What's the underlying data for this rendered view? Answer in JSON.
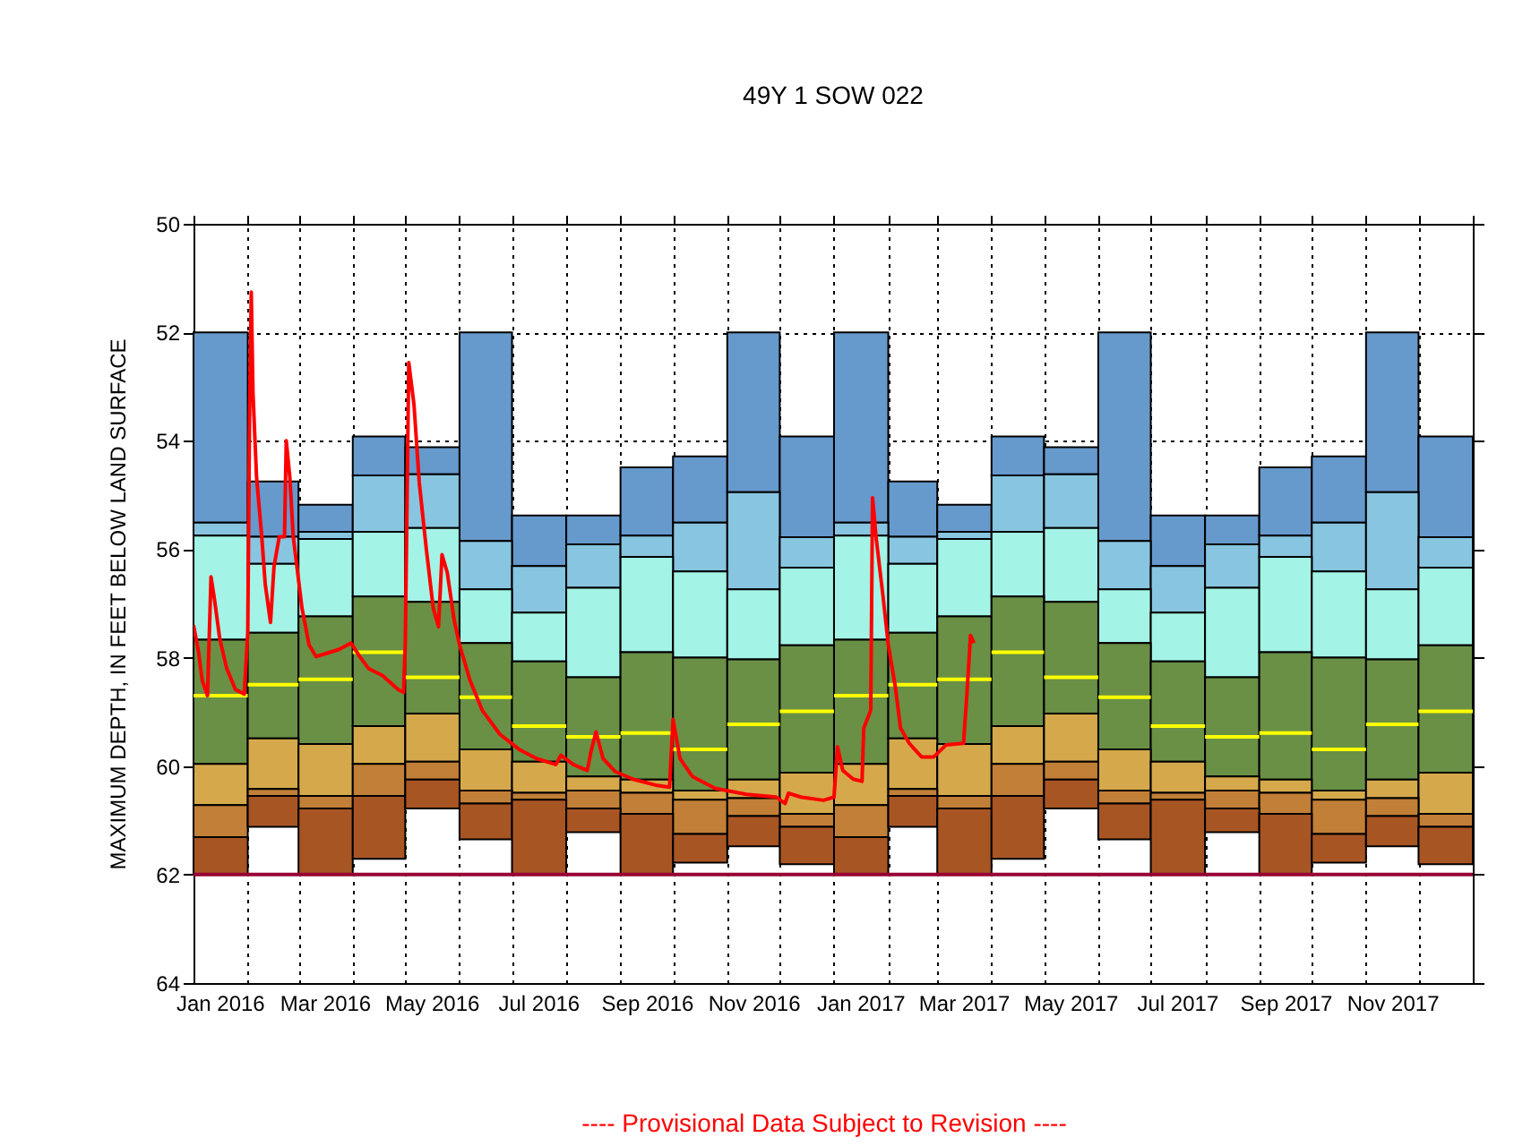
{
  "chart_data": {
    "type": "bar",
    "title": "49Y  1 SOW 022",
    "ylabel": "MAXIMUM DEPTH, IN FEET BELOW LAND SURFACE",
    "annotations": [
      "---- Provisional Data Subject to Revision ----"
    ],
    "grid": true,
    "x": [
      "2016-01",
      "2016-02",
      "2016-03",
      "2016-04",
      "2016-05",
      "2016-06",
      "2016-07",
      "2016-08",
      "2016-09",
      "2016-10",
      "2016-11",
      "2016-12",
      "2017-01",
      "2017-02",
      "2017-03",
      "2017-04",
      "2017-05",
      "2017-06",
      "2017-07",
      "2017-08",
      "2017-09",
      "2017-10",
      "2017-11",
      "2017-12"
    ],
    "series": [
      {
        "color": "#6699cc",
        "base": [
          52,
          54.75,
          55.18,
          53.92,
          54.12,
          52,
          55.38,
          55.38,
          54.49,
          54.29,
          52,
          53.92,
          52,
          54.75,
          55.18,
          53.92,
          54.12,
          52,
          55.38,
          55.38,
          54.49,
          54.29,
          52,
          53.92
        ],
        "values": [
          3.51,
          1.02,
          0.5,
          0.72,
          0.5,
          3.85,
          0.93,
          0.53,
          1.26,
          1.22,
          2.95,
          1.86,
          3.51,
          1.02,
          0.5,
          0.72,
          0.5,
          3.85,
          0.93,
          0.53,
          1.26,
          1.22,
          2.95,
          1.86
        ]
      },
      {
        "color": "#88c5e0",
        "base": [
          55.51,
          55.77,
          55.68,
          54.64,
          54.62,
          55.85,
          56.31,
          55.91,
          55.75,
          55.51,
          54.95,
          55.78,
          55.51,
          55.77,
          55.68,
          54.64,
          54.62,
          55.85,
          56.31,
          55.91,
          55.75,
          55.51,
          54.95,
          55.78
        ],
        "values": [
          0.24,
          0.5,
          0.13,
          1.04,
          0.99,
          0.89,
          0.86,
          0.8,
          0.39,
          0.9,
          1.79,
          0.56,
          0.24,
          0.5,
          0.13,
          1.04,
          0.99,
          0.89,
          0.86,
          0.8,
          0.39,
          0.9,
          1.79,
          0.56
        ]
      },
      {
        "color": "#a3f4e6",
        "base": [
          55.75,
          56.27,
          55.81,
          55.68,
          55.61,
          56.74,
          57.17,
          56.71,
          56.14,
          56.41,
          56.74,
          56.34,
          55.75,
          56.27,
          55.81,
          55.68,
          55.61,
          56.74,
          57.17,
          56.71,
          56.14,
          56.41,
          56.74,
          56.34
        ],
        "values": [
          1.92,
          1.27,
          1.43,
          1.19,
          1.36,
          0.99,
          0.9,
          1.65,
          1.76,
          1.59,
          1.29,
          1.43,
          1.92,
          1.27,
          1.43,
          1.19,
          1.36,
          0.99,
          0.9,
          1.65,
          1.76,
          1.59,
          1.29,
          1.43
        ]
      },
      {
        "color": "#6a9046",
        "base": [
          57.67,
          57.54,
          57.24,
          56.87,
          56.97,
          57.73,
          58.07,
          58.36,
          57.9,
          58.0,
          58.03,
          57.77,
          57.67,
          57.54,
          57.24,
          56.87,
          56.97,
          57.73,
          58.07,
          58.36,
          57.9,
          58.0,
          58.03,
          57.77
        ],
        "values": [
          2.29,
          1.95,
          2.35,
          2.39,
          2.06,
          1.96,
          1.85,
          1.83,
          2.35,
          2.45,
          2.22,
          2.35,
          2.29,
          1.95,
          2.35,
          2.39,
          2.06,
          1.96,
          1.85,
          1.83,
          2.35,
          2.45,
          2.22,
          2.35
        ]
      },
      {
        "color": "#d5a94b",
        "base": [
          59.96,
          59.49,
          59.59,
          59.26,
          59.03,
          59.69,
          59.92,
          60.19,
          60.25,
          60.45,
          60.25,
          60.12,
          59.96,
          59.49,
          59.59,
          59.26,
          59.03,
          59.69,
          59.92,
          60.19,
          60.25,
          60.45,
          60.25,
          60.12
        ],
        "values": [
          0.76,
          0.93,
          0.96,
          0.7,
          0.89,
          0.76,
          0.57,
          0.26,
          0.24,
          0.17,
          0.34,
          0.76,
          0.76,
          0.93,
          0.96,
          0.7,
          0.89,
          0.76,
          0.57,
          0.26,
          0.24,
          0.17,
          0.34,
          0.76
        ]
      },
      {
        "color": "#c27f37",
        "base": [
          60.72,
          60.42,
          60.55,
          59.96,
          59.92,
          60.45,
          60.49,
          60.45,
          60.49,
          60.62,
          60.59,
          60.88,
          60.72,
          60.42,
          60.55,
          59.96,
          59.92,
          60.45,
          60.49,
          60.45,
          60.49,
          60.62,
          60.59,
          60.88
        ],
        "values": [
          0.59,
          0.13,
          0.23,
          0.59,
          0.33,
          0.24,
          0.13,
          0.33,
          0.39,
          0.63,
          0.33,
          0.24,
          0.59,
          0.13,
          0.23,
          0.59,
          0.33,
          0.24,
          0.13,
          0.33,
          0.39,
          0.63,
          0.33,
          0.24
        ]
      },
      {
        "color": "#a85524",
        "base": [
          61.31,
          60.55,
          60.78,
          60.55,
          60.25,
          60.69,
          60.62,
          60.78,
          60.88,
          61.25,
          60.92,
          61.12,
          61.31,
          60.55,
          60.78,
          60.55,
          60.25,
          60.69,
          60.62,
          60.78,
          60.88,
          61.25,
          60.92,
          61.12
        ],
        "values": [
          0.69,
          0.57,
          1.22,
          1.16,
          0.53,
          0.66,
          1.38,
          0.44,
          1.12,
          0.53,
          0.56,
          0.69,
          0.69,
          0.57,
          1.22,
          1.16,
          0.53,
          0.66,
          1.38,
          0.44,
          1.12,
          0.53,
          0.56,
          0.69
        ]
      },
      {
        "type": "line",
        "color": "#ffff00",
        "x": [
          "2016-01-01",
          "2016-02-01"
        ],
        "values": [
          58.7,
          58.7
        ]
      },
      {
        "type": "line",
        "color": "#ffff00",
        "x": [
          "2016-02-01",
          "2016-03-01"
        ],
        "values": [
          58.5,
          58.5
        ]
      },
      {
        "type": "line",
        "color": "#ffff00",
        "x": [
          "2016-03-01",
          "2016-04-01"
        ],
        "values": [
          58.4,
          58.4
        ]
      },
      {
        "type": "line",
        "color": "#ffff00",
        "x": [
          "2016-04-01",
          "2016-05-01"
        ],
        "values": [
          57.9,
          57.9
        ]
      },
      {
        "type": "line",
        "color": "#ffff00",
        "x": [
          "2016-05-01",
          "2016-06-01"
        ],
        "values": [
          58.36,
          58.36
        ]
      },
      {
        "type": "line",
        "color": "#ffff00",
        "x": [
          "2016-06-01",
          "2016-07-01"
        ],
        "values": [
          58.73,
          58.73
        ]
      },
      {
        "type": "line",
        "color": "#ffff00",
        "x": [
          "2016-07-01",
          "2016-08-01"
        ],
        "values": [
          59.26,
          59.26
        ]
      },
      {
        "type": "line",
        "color": "#ffff00",
        "x": [
          "2016-08-01",
          "2016-09-01"
        ],
        "values": [
          59.46,
          59.46
        ]
      },
      {
        "type": "line",
        "color": "#ffff00",
        "x": [
          "2016-09-01",
          "2016-10-01"
        ],
        "values": [
          59.39,
          59.39
        ]
      },
      {
        "type": "line",
        "color": "#ffff00",
        "x": [
          "2016-10-01",
          "2016-11-01"
        ],
        "values": [
          59.69,
          59.69
        ]
      },
      {
        "type": "line",
        "color": "#ffff00",
        "x": [
          "2016-11-01",
          "2016-12-01"
        ],
        "values": [
          59.23,
          59.23
        ]
      },
      {
        "type": "line",
        "color": "#ffff00",
        "x": [
          "2016-12-01",
          "2017-01-01"
        ],
        "values": [
          58.99,
          58.99
        ]
      },
      {
        "type": "line",
        "color": "#ffff00",
        "x": [
          "2017-01-01",
          "2017-02-01"
        ],
        "values": [
          58.7,
          58.7
        ]
      },
      {
        "type": "line",
        "color": "#ffff00",
        "x": [
          "2017-02-01",
          "2017-03-01"
        ],
        "values": [
          58.5,
          58.5
        ]
      },
      {
        "type": "line",
        "color": "#ffff00",
        "x": [
          "2017-03-01",
          "2017-04-01"
        ],
        "values": [
          58.4,
          58.4
        ]
      },
      {
        "type": "line",
        "color": "#ffff00",
        "x": [
          "2017-04-01",
          "2017-05-01"
        ],
        "values": [
          57.9,
          57.9
        ]
      },
      {
        "type": "line",
        "color": "#ffff00",
        "x": [
          "2017-05-01",
          "2017-06-01"
        ],
        "values": [
          58.36,
          58.36
        ]
      },
      {
        "type": "line",
        "color": "#ffff00",
        "x": [
          "2017-06-01",
          "2017-07-01"
        ],
        "values": [
          58.73,
          58.73
        ]
      },
      {
        "type": "line",
        "color": "#ffff00",
        "x": [
          "2017-07-01",
          "2017-08-01"
        ],
        "values": [
          59.26,
          59.26
        ]
      },
      {
        "type": "line",
        "color": "#ffff00",
        "x": [
          "2017-08-01",
          "2017-09-01"
        ],
        "values": [
          59.46,
          59.46
        ]
      },
      {
        "type": "line",
        "color": "#ffff00",
        "x": [
          "2017-09-01",
          "2017-10-01"
        ],
        "values": [
          59.39,
          59.39
        ]
      },
      {
        "type": "line",
        "color": "#ffff00",
        "x": [
          "2017-10-01",
          "2017-11-01"
        ],
        "values": [
          59.69,
          59.69
        ]
      },
      {
        "type": "line",
        "color": "#ffff00",
        "x": [
          "2017-11-01",
          "2017-12-01"
        ],
        "values": [
          59.23,
          59.23
        ]
      },
      {
        "type": "line",
        "color": "#ffff00",
        "x": [
          "2017-12-01",
          "2018-01-01"
        ],
        "values": [
          58.99,
          58.99
        ]
      },
      {
        "type": "line",
        "color": "#ff0000",
        "x": [
          "2016-01-01",
          "2016-01-04",
          "2016-01-06",
          "2016-01-09",
          "2016-01-11",
          "2016-01-13",
          "2016-01-16",
          "2016-01-20",
          "2016-01-25",
          "2016-01-30",
          "2016-02-01",
          "2016-02-02",
          "2016-02-03",
          "2016-02-04",
          "2016-02-06",
          "2016-02-09",
          "2016-02-11",
          "2016-02-14",
          "2016-02-16",
          "2016-02-19",
          "2016-02-22",
          "2016-02-23",
          "2016-02-25",
          "2016-02-27",
          "2016-03-03",
          "2016-03-07",
          "2016-03-11",
          "2016-03-17",
          "2016-03-24",
          "2016-03-31",
          "2016-04-05",
          "2016-04-10",
          "2016-04-18",
          "2016-04-27",
          "2016-04-30",
          "2016-05-01",
          "2016-05-03",
          "2016-05-06",
          "2016-05-09",
          "2016-05-13",
          "2016-05-17",
          "2016-05-20",
          "2016-05-22",
          "2016-05-25",
          "2016-05-29",
          "2016-06-01",
          "2016-06-07",
          "2016-06-14",
          "2016-06-24",
          "2016-07-05",
          "2016-07-15",
          "2016-07-26",
          "2016-07-29",
          "2016-08-05",
          "2016-08-13",
          "2016-08-15",
          "2016-08-18",
          "2016-08-22",
          "2016-08-29",
          "2016-09-08",
          "2016-09-21",
          "2016-09-29",
          "2016-10-01",
          "2016-10-05",
          "2016-10-12",
          "2016-10-25",
          "2016-11-12",
          "2016-11-29",
          "2016-12-04",
          "2016-12-06",
          "2016-12-13",
          "2016-12-26",
          "2017-01-01",
          "2017-01-03",
          "2017-01-06",
          "2017-01-12",
          "2017-01-17",
          "2017-01-18",
          "2017-01-22",
          "2017-01-23",
          "2017-01-25",
          "2017-01-29",
          "2017-02-01",
          "2017-02-05",
          "2017-02-08",
          "2017-02-13",
          "2017-02-20",
          "2017-02-27",
          "2017-03-06",
          "2017-03-16",
          "2017-03-18",
          "2017-03-20",
          "2017-03-22"
        ],
        "values": [
          57.4,
          57.92,
          58.42,
          58.7,
          56.51,
          56.93,
          57.65,
          58.2,
          58.59,
          58.67,
          57.54,
          53.67,
          51.26,
          53.12,
          54.66,
          55.77,
          56.65,
          57.35,
          56.32,
          55.77,
          55.77,
          54.0,
          54.66,
          55.77,
          57.09,
          57.76,
          57.98,
          57.92,
          57.85,
          57.73,
          57.98,
          58.2,
          58.33,
          58.59,
          58.64,
          57.76,
          52.56,
          53.34,
          54.77,
          55.99,
          57.09,
          57.43,
          56.1,
          56.43,
          57.32,
          57.76,
          58.42,
          58.97,
          59.41,
          59.69,
          59.86,
          59.97,
          59.8,
          59.97,
          60.08,
          59.75,
          59.37,
          59.86,
          60.1,
          60.24,
          60.35,
          60.39,
          59.14,
          59.86,
          60.19,
          60.41,
          60.52,
          60.57,
          60.69,
          60.5,
          60.57,
          60.63,
          60.57,
          59.64,
          60.08,
          60.24,
          60.28,
          59.3,
          58.97,
          55.05,
          55.77,
          56.87,
          57.76,
          58.53,
          59.3,
          59.58,
          59.83,
          59.83,
          59.61,
          59.58,
          58.64,
          57.59,
          57.73
        ]
      }
    ],
    "ref_lines": [
      {
        "axis": "y",
        "value": 62,
        "color": "#990033"
      }
    ],
    "xlim": [
      "2016-01",
      "2018-01"
    ],
    "xticks": [
      {
        "value": "2016-01",
        "label": null
      },
      {
        "value": "2016-02",
        "label": null
      },
      {
        "value": "2016-03",
        "label": null
      },
      {
        "value": "2016-04",
        "label": null
      },
      {
        "value": "2016-05",
        "label": null
      },
      {
        "value": "2016-06",
        "label": null
      },
      {
        "value": "2016-07",
        "label": null
      },
      {
        "value": "2016-08",
        "label": null
      },
      {
        "value": "2016-09",
        "label": null
      },
      {
        "value": "2016-10",
        "label": null
      },
      {
        "value": "2016-11",
        "label": null
      },
      {
        "value": "2016-12",
        "label": null
      },
      {
        "value": "2017-01",
        "label": null
      },
      {
        "value": "2017-02",
        "label": null
      },
      {
        "value": "2017-03",
        "label": null
      },
      {
        "value": "2017-04",
        "label": null
      },
      {
        "value": "2017-05",
        "label": null
      },
      {
        "value": "2017-06",
        "label": null
      },
      {
        "value": "2017-07",
        "label": null
      },
      {
        "value": "2017-08",
        "label": null
      },
      {
        "value": "2017-09",
        "label": null
      },
      {
        "value": "2017-10",
        "label": null
      },
      {
        "value": "2017-11",
        "label": null
      },
      {
        "value": "2017-12",
        "label": null
      },
      {
        "value": "2018-01",
        "label": null
      },
      {
        "value": "2016-01-16",
        "label": "Jan 2016"
      },
      {
        "value": "2016-03-16",
        "label": "Mar 2016"
      },
      {
        "value": "2016-05-16",
        "label": "May 2016"
      },
      {
        "value": "2016-07-16",
        "label": "Jul 2016"
      },
      {
        "value": "2016-09-16",
        "label": "Sep 2016"
      },
      {
        "value": "2016-11-16",
        "label": "Nov 2016"
      },
      {
        "value": "2017-01-16",
        "label": "Jan 2017"
      },
      {
        "value": "2017-03-16",
        "label": "Mar 2017"
      },
      {
        "value": "2017-05-16",
        "label": "May 2017"
      },
      {
        "value": "2017-07-16",
        "label": "Jul 2017"
      },
      {
        "value": "2017-09-16",
        "label": "Sep 2017"
      },
      {
        "value": "2017-11-16",
        "label": "Nov 2017"
      }
    ],
    "ylim": [
      64,
      50
    ],
    "yticks": [
      50,
      52,
      54,
      56,
      58,
      60,
      62,
      64
    ]
  }
}
